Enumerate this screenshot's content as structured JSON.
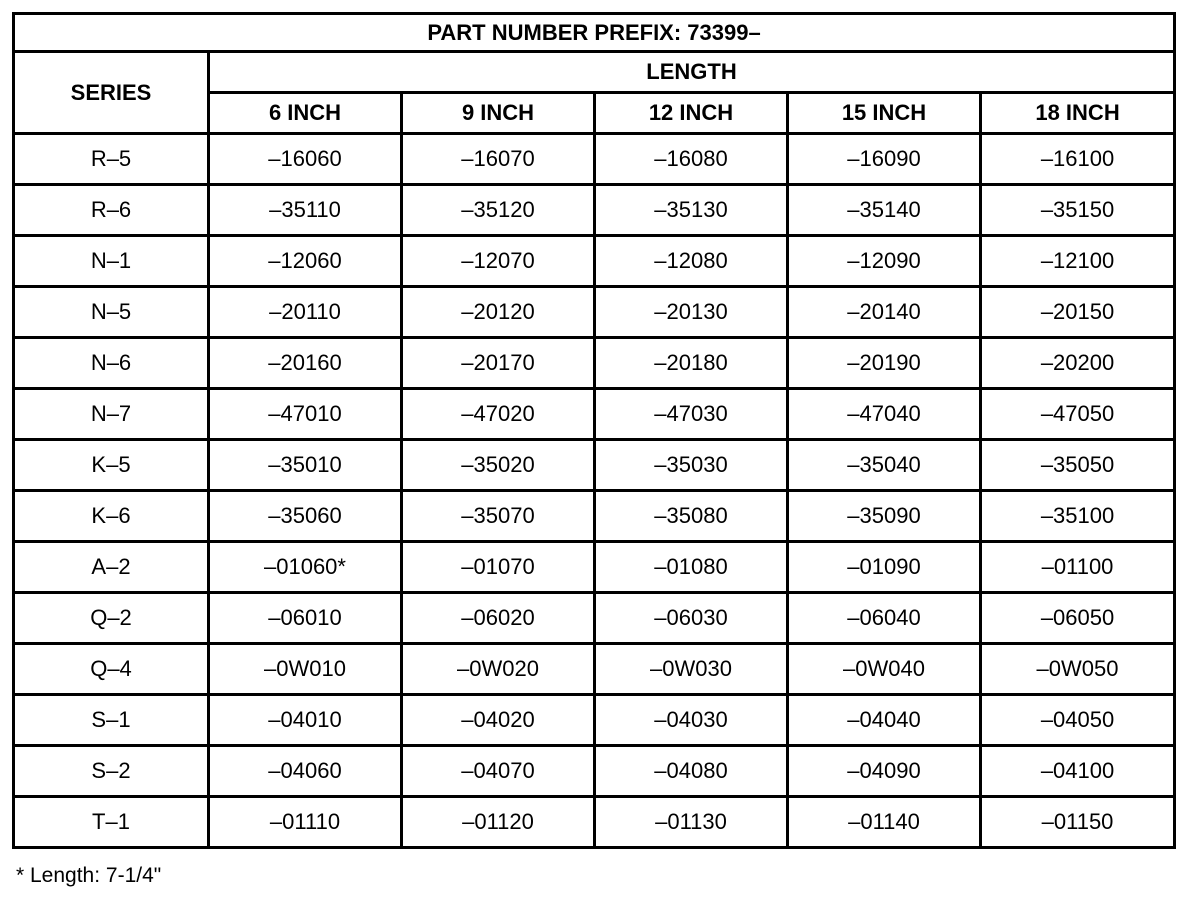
{
  "title": "PART NUMBER PREFIX: 73399–",
  "series_header": "SERIES",
  "length_header": "LENGTH",
  "columns": [
    "6 INCH",
    "9 INCH",
    "12 INCH",
    "15 INCH",
    "18 INCH"
  ],
  "rows": [
    {
      "series": "R–5",
      "values": [
        "–16060",
        "–16070",
        "–16080",
        "–16090",
        "–16100"
      ]
    },
    {
      "series": "R–6",
      "values": [
        "–35110",
        "–35120",
        "–35130",
        "–35140",
        "–35150"
      ]
    },
    {
      "series": "N–1",
      "values": [
        "–12060",
        "–12070",
        "–12080",
        "–12090",
        "–12100"
      ]
    },
    {
      "series": "N–5",
      "values": [
        "–20110",
        "–20120",
        "–20130",
        "–20140",
        "–20150"
      ]
    },
    {
      "series": "N–6",
      "values": [
        "–20160",
        "–20170",
        "–20180",
        "–20190",
        "–20200"
      ]
    },
    {
      "series": "N–7",
      "values": [
        "–47010",
        "–47020",
        "–47030",
        "–47040",
        "–47050"
      ]
    },
    {
      "series": "K–5",
      "values": [
        "–35010",
        "–35020",
        "–35030",
        "–35040",
        "–35050"
      ]
    },
    {
      "series": "K–6",
      "values": [
        "–35060",
        "–35070",
        "–35080",
        "–35090",
        "–35100"
      ]
    },
    {
      "series": "A–2",
      "values": [
        "–01060*",
        "–01070",
        "–01080",
        "–01090",
        "–01100"
      ]
    },
    {
      "series": "Q–2",
      "values": [
        "–06010",
        "–06020",
        "–06030",
        "–06040",
        "–06050"
      ]
    },
    {
      "series": "Q–4",
      "values": [
        "–0W010",
        "–0W020",
        "–0W030",
        "–0W040",
        "–0W050"
      ]
    },
    {
      "series": "S–1",
      "values": [
        "–04010",
        "–04020",
        "–04030",
        "–04040",
        "–04050"
      ]
    },
    {
      "series": "S–2",
      "values": [
        "–04060",
        "–04070",
        "–04080",
        "–04090",
        "–04100"
      ]
    },
    {
      "series": "T–1",
      "values": [
        "–01110",
        "–01120",
        "–01130",
        "–01140",
        "–01150"
      ]
    }
  ],
  "footnote": "*  Length:  7-1/4\""
}
